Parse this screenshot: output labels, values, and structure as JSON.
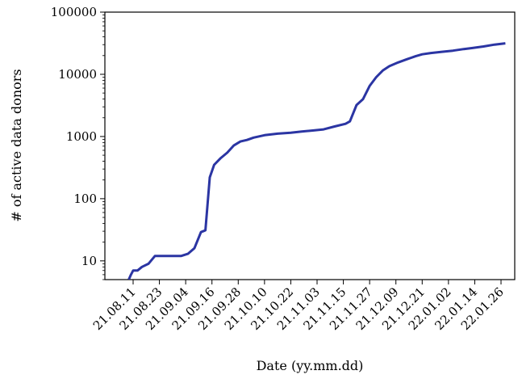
{
  "chart_data": {
    "type": "line",
    "xlabel": "Date (yy.mm.dd)",
    "ylabel": "# of active data donors",
    "yscale": "log",
    "ylim": [
      5,
      100000
    ],
    "grid": false,
    "legend": "none",
    "x_ticks": [
      "21.08.11",
      "21.08.23",
      "21.09.04",
      "21.09.16",
      "21.09.28",
      "21.10.10",
      "21.10.22",
      "21.11.03",
      "21.11.15",
      "21.11.27",
      "21.12.09",
      "21.12.21",
      "22.01.02",
      "22.01.14",
      "22.01.26"
    ],
    "y_ticks": [
      {
        "value": 10,
        "label": "10"
      },
      {
        "value": 100,
        "label": "100"
      },
      {
        "value": 1000,
        "label": "1000"
      },
      {
        "value": 10000,
        "label": "10000"
      },
      {
        "value": 100000,
        "label": "100000"
      }
    ],
    "series": [
      {
        "color": "#2b35a3",
        "points": [
          [
            "21.08.09",
            5
          ],
          [
            "21.08.10",
            6
          ],
          [
            "21.08.11",
            7
          ],
          [
            "21.08.13",
            7
          ],
          [
            "21.08.15",
            8
          ],
          [
            "21.08.18",
            9
          ],
          [
            "21.08.21",
            12
          ],
          [
            "21.08.24",
            12
          ],
          [
            "21.08.27",
            12
          ],
          [
            "21.08.30",
            12
          ],
          [
            "21.09.02",
            12
          ],
          [
            "21.09.05",
            13
          ],
          [
            "21.09.08",
            16
          ],
          [
            "21.09.11",
            29
          ],
          [
            "21.09.13",
            31
          ],
          [
            "21.09.15",
            220
          ],
          [
            "21.09.17",
            350
          ],
          [
            "21.09.20",
            450
          ],
          [
            "21.09.23",
            550
          ],
          [
            "21.09.26",
            720
          ],
          [
            "21.09.29",
            830
          ],
          [
            "21.10.02",
            880
          ],
          [
            "21.10.05",
            960
          ],
          [
            "21.10.10",
            1050
          ],
          [
            "21.10.16",
            1110
          ],
          [
            "21.10.22",
            1150
          ],
          [
            "21.10.27",
            1200
          ],
          [
            "21.11.01",
            1250
          ],
          [
            "21.11.06",
            1300
          ],
          [
            "21.11.11",
            1450
          ],
          [
            "21.11.16",
            1600
          ],
          [
            "21.11.18",
            1750
          ],
          [
            "21.11.21",
            3200
          ],
          [
            "21.11.24",
            4000
          ],
          [
            "21.11.27",
            6500
          ],
          [
            "21.11.30",
            9000
          ],
          [
            "21.12.03",
            11500
          ],
          [
            "21.12.06",
            13500
          ],
          [
            "21.12.10",
            15500
          ],
          [
            "21.12.14",
            17500
          ],
          [
            "21.12.18",
            19500
          ],
          [
            "21.12.21",
            21000
          ],
          [
            "21.12.25",
            22000
          ],
          [
            "21.12.30",
            23000
          ],
          [
            "22.01.04",
            24000
          ],
          [
            "22.01.09",
            25500
          ],
          [
            "22.01.13",
            26500
          ],
          [
            "22.01.18",
            28000
          ],
          [
            "22.01.23",
            30000
          ],
          [
            "22.01.28",
            31500
          ]
        ]
      }
    ]
  }
}
